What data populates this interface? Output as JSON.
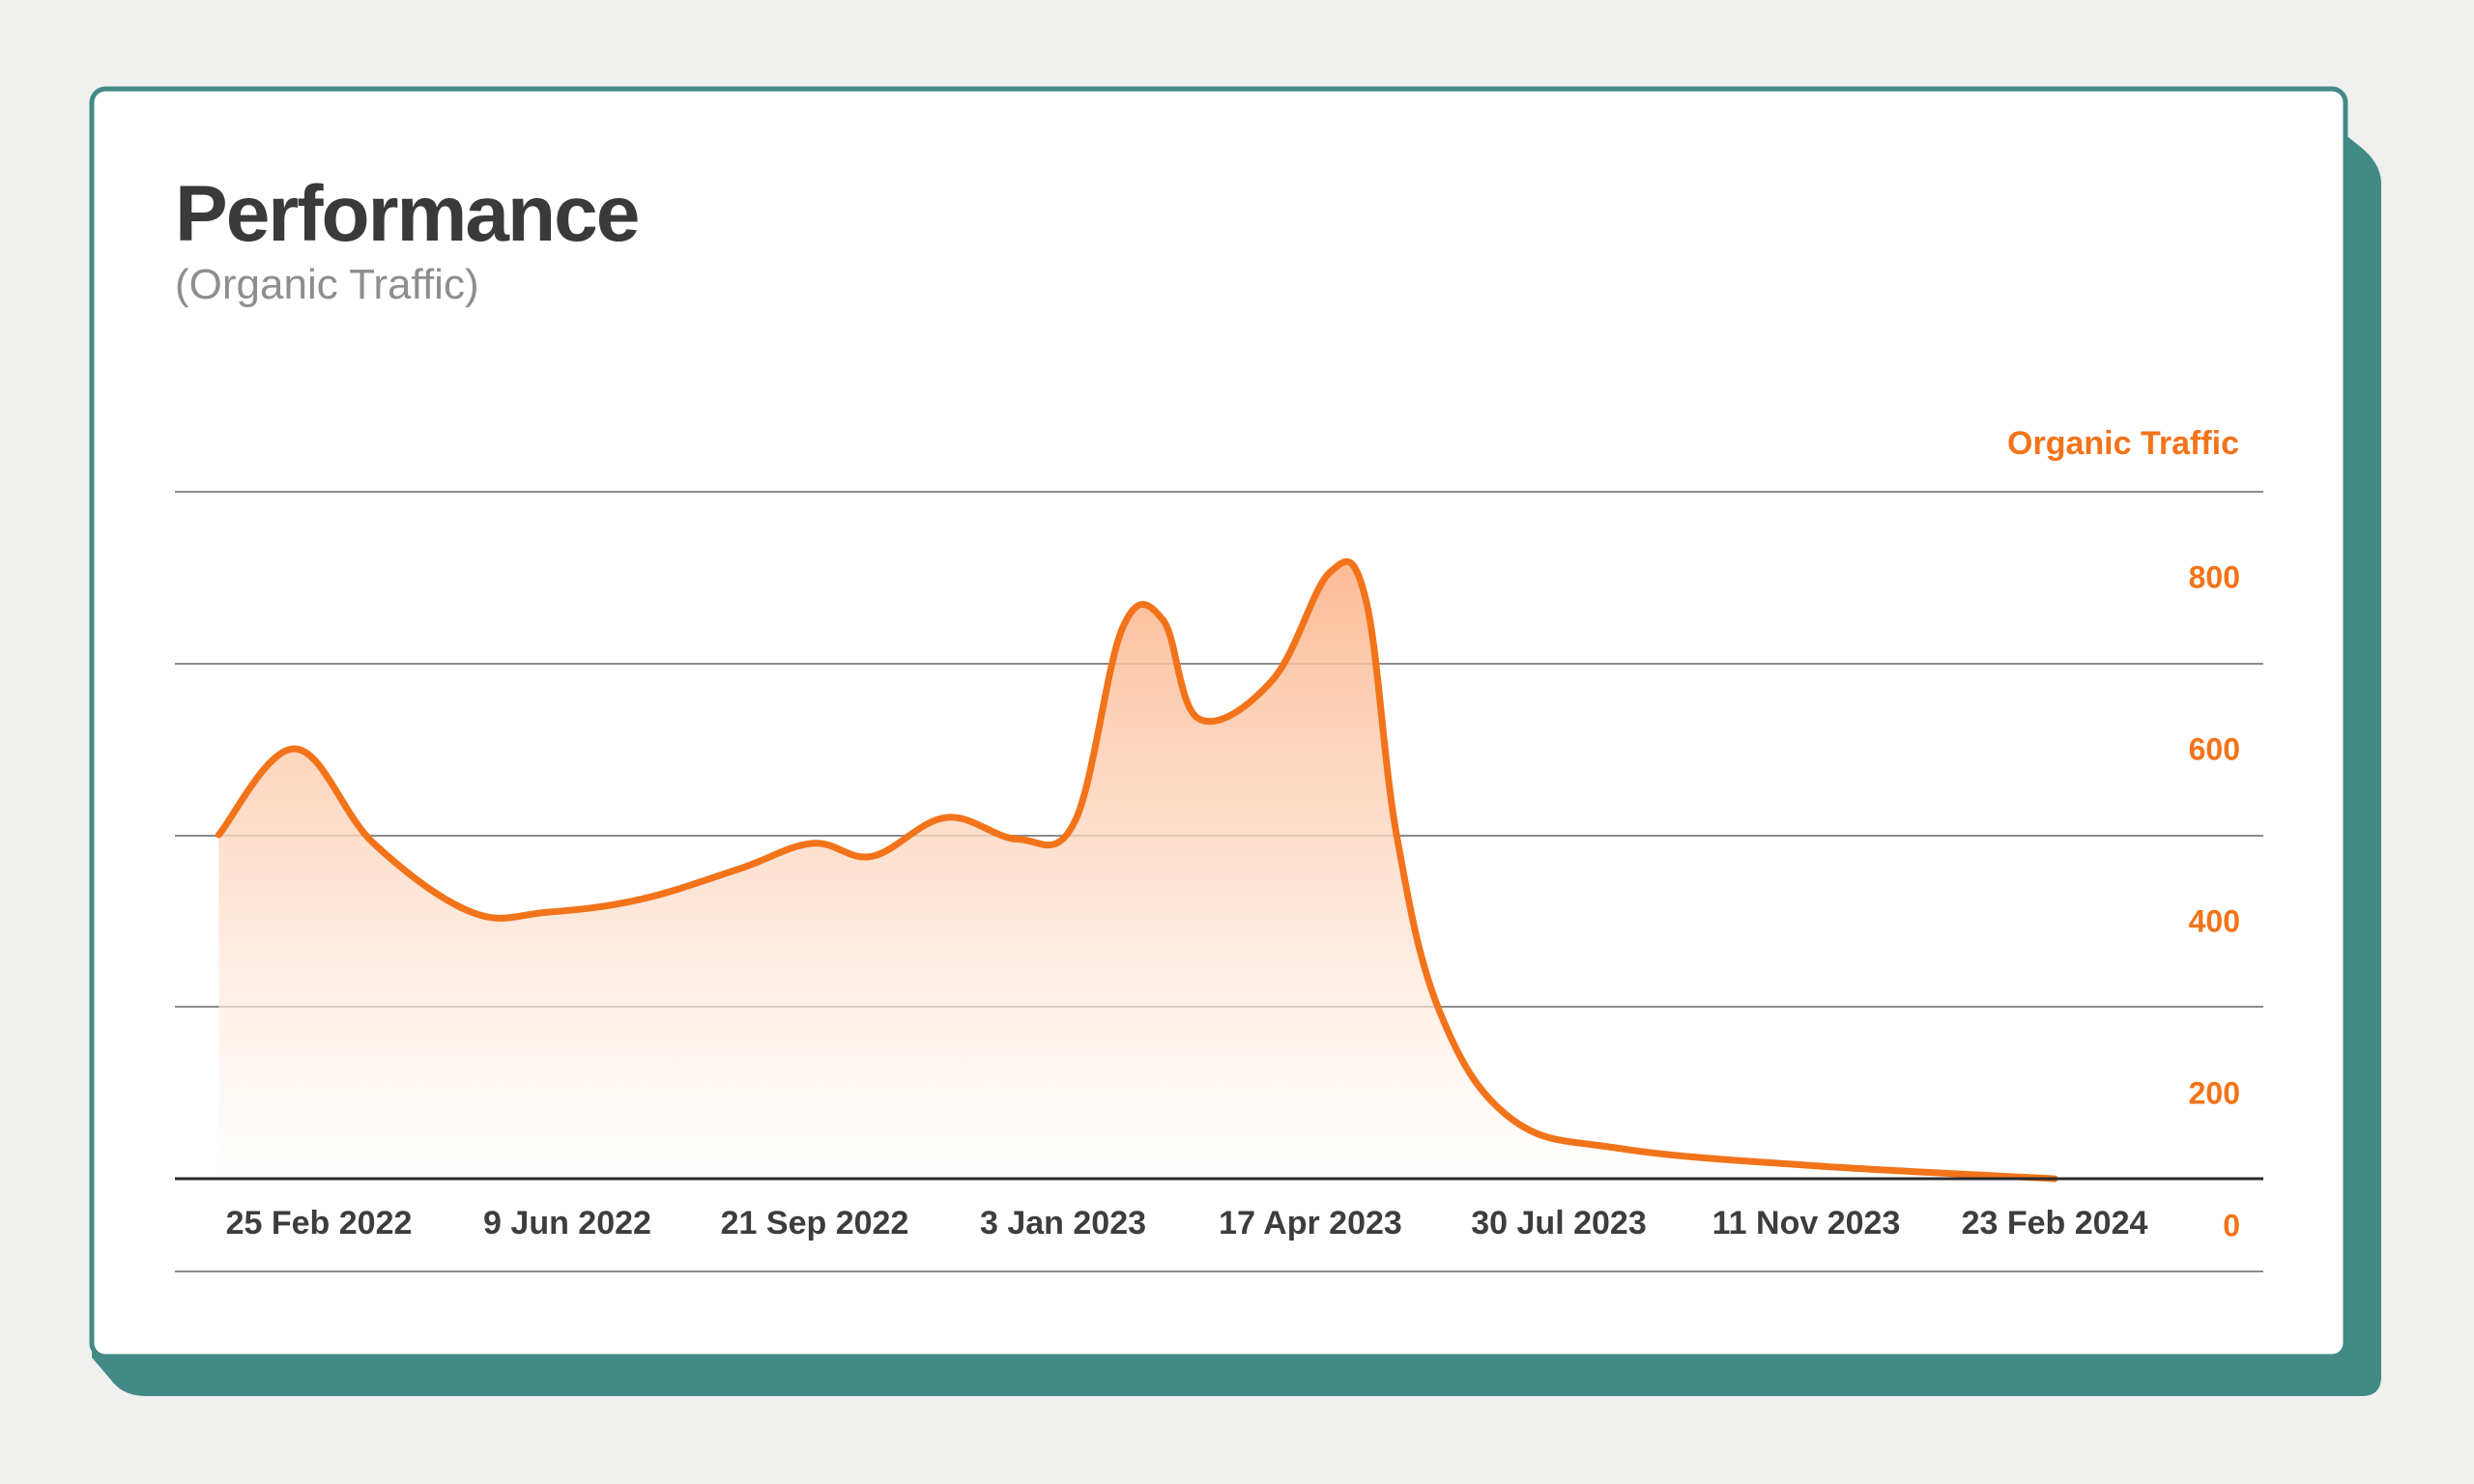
{
  "title": "Performance",
  "subtitle": "(Organic Traffic)",
  "colors": {
    "accent": "#f27319",
    "card_shadow": "#438a87",
    "card_border": "#438a87",
    "title": "#3a3a3a",
    "grid": "#8c8c8c"
  },
  "chart_data": {
    "type": "area",
    "title": "Performance",
    "subtitle": "(Organic Traffic)",
    "ylabel": "Organic Traffic",
    "y_axis_side": "right",
    "ylim": [
      0,
      800
    ],
    "y_ticks": [
      "800",
      "600",
      "400",
      "200",
      "0"
    ],
    "x_ticks": [
      "25 Feb 2022",
      "9 Jun 2022",
      "21 Sep 2022",
      "3 Jan 2023",
      "17 Apr 2023",
      "30 Jul 2023",
      "11 Nov 2023",
      "23 Feb 2024"
    ],
    "grid": true,
    "series": [
      {
        "name": "Organic Traffic",
        "points": [
          [
            "2022-01-14",
            400
          ],
          [
            "2022-02-15",
            500
          ],
          [
            "2022-03-20",
            390
          ],
          [
            "2022-04-30",
            310
          ],
          [
            "2022-06-01",
            310
          ],
          [
            "2022-07-10",
            325
          ],
          [
            "2022-08-20",
            360
          ],
          [
            "2022-09-20",
            390
          ],
          [
            "2022-10-15",
            375
          ],
          [
            "2022-11-15",
            420
          ],
          [
            "2022-12-15",
            395
          ],
          [
            "2023-01-08",
            415
          ],
          [
            "2023-01-28",
            640
          ],
          [
            "2023-02-14",
            650
          ],
          [
            "2023-03-01",
            535
          ],
          [
            "2023-04-01",
            580
          ],
          [
            "2023-04-25",
            705
          ],
          [
            "2023-05-10",
            675
          ],
          [
            "2023-05-23",
            400
          ],
          [
            "2023-06-10",
            195
          ],
          [
            "2023-07-10",
            70
          ],
          [
            "2023-08-25",
            35
          ],
          [
            "2023-11-15",
            15
          ],
          [
            "2024-02-23",
            0
          ]
        ]
      }
    ]
  }
}
